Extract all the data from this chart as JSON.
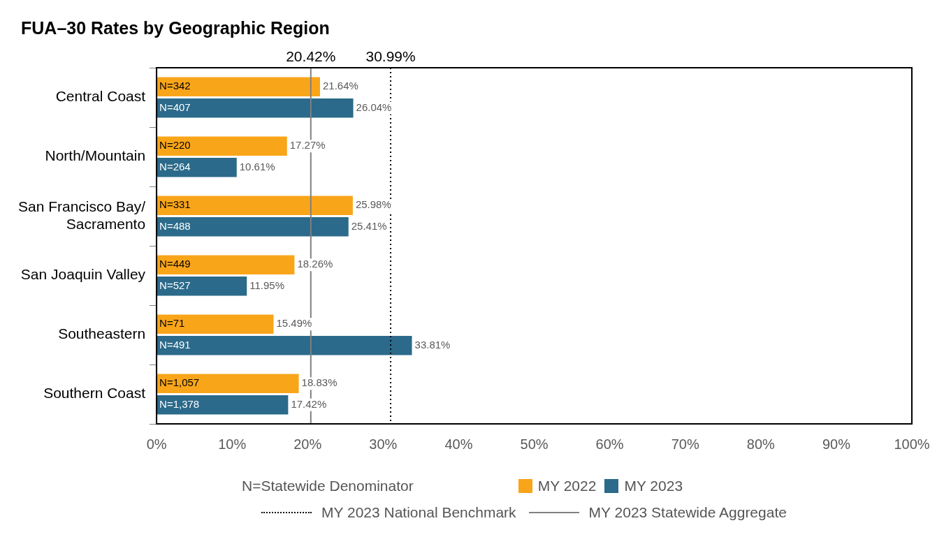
{
  "chart_data": {
    "type": "bar",
    "orientation": "horizontal",
    "title": "FUA–30 Rates by Geographic Region",
    "categories": [
      "Central Coast",
      "North/Mountain",
      "San Francisco Bay/\nSacramento",
      "San Joaquin Valley",
      "Southeastern",
      "Southern Coast"
    ],
    "series": [
      {
        "name": "MY 2022",
        "color": "#f9a51a",
        "values": [
          21.64,
          17.27,
          25.98,
          18.26,
          15.49,
          18.83
        ],
        "value_labels": [
          "21.64%",
          "17.27%",
          "25.98%",
          "18.26%",
          "15.49%",
          "18.83%"
        ]
      },
      {
        "name": "MY 2023",
        "color": "#2b6a8a",
        "values": [
          26.04,
          10.61,
          25.41,
          11.95,
          33.81,
          17.42
        ],
        "value_labels": [
          "26.04%",
          "10.61%",
          "25.41%",
          "11.95%",
          "33.81%",
          "17.42%"
        ]
      }
    ],
    "xlim": [
      0,
      100
    ],
    "xticks": [
      {
        "value": 0,
        "label": "0%"
      },
      {
        "value": 10,
        "label": "10%"
      },
      {
        "value": 20,
        "label": "20%"
      },
      {
        "value": 30,
        "label": "30%"
      },
      {
        "value": 40,
        "label": "40%"
      },
      {
        "value": 50,
        "label": "50%"
      },
      {
        "value": 60,
        "label": "60%"
      },
      {
        "value": 70,
        "label": "70%"
      },
      {
        "value": 80,
        "label": "80%"
      },
      {
        "value": 90,
        "label": "90%"
      },
      {
        "value": 100,
        "label": "100%"
      }
    ],
    "ref_lines": [
      {
        "axis": "x",
        "value": 20.42,
        "label": "MY 2023 Statewide Aggregate",
        "color": "#808080",
        "line_style": "solid"
      },
      {
        "axis": "x",
        "value": 30.99,
        "label": "MY 2023 National Benchmark",
        "color": "#000000",
        "line_style": "dotted"
      }
    ],
    "annotations": [
      "N=Statewide Denominator",
      "20.42%",
      "30.99%",
      {
        "text": "N=342",
        "y": "Central Coast"
      },
      {
        "text": "N=407",
        "y": "Central Coast"
      },
      {
        "text": "N=220",
        "y": "North/Mountain"
      },
      {
        "text": "N=264",
        "y": "North/Mountain"
      },
      {
        "text": "N=331",
        "y": "San Francisco Bay/\nSacramento"
      },
      {
        "text": "N=488",
        "y": "San Francisco Bay/\nSacramento"
      },
      {
        "text": "N=449",
        "y": "San Joaquin Valley"
      },
      {
        "text": "N=527",
        "y": "San Joaquin Valley"
      },
      {
        "text": "N=71",
        "y": "Southeastern"
      },
      {
        "text": "N=491",
        "y": "Southeastern"
      },
      {
        "text": "N=1,057",
        "y": "Southern Coast"
      },
      {
        "text": "N=1,378",
        "y": "Southern Coast"
      }
    ],
    "grid": false,
    "legend": "bottom"
  }
}
